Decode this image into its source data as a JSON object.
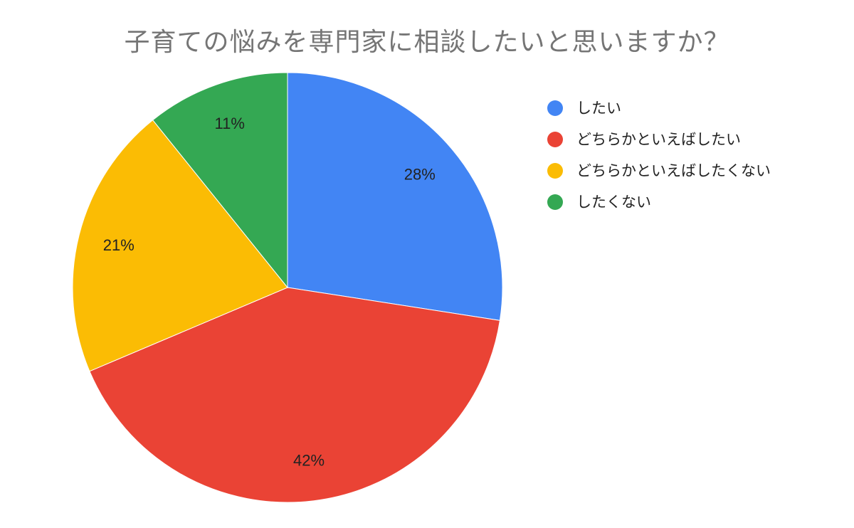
{
  "chart_data": {
    "type": "pie",
    "title": "子育ての悩みを専門家に相談したいと思いますか？",
    "categories": [
      "したい",
      "どちらかといえばしたい",
      "どちらかといえばしたくない",
      "したくない"
    ],
    "values": [
      28,
      42,
      21,
      11
    ],
    "labels": [
      "28%",
      "42%",
      "21%",
      "11%"
    ],
    "colors": [
      "#4285F4",
      "#EA4335",
      "#FBBC04",
      "#34A853"
    ],
    "legend_position": "right"
  }
}
